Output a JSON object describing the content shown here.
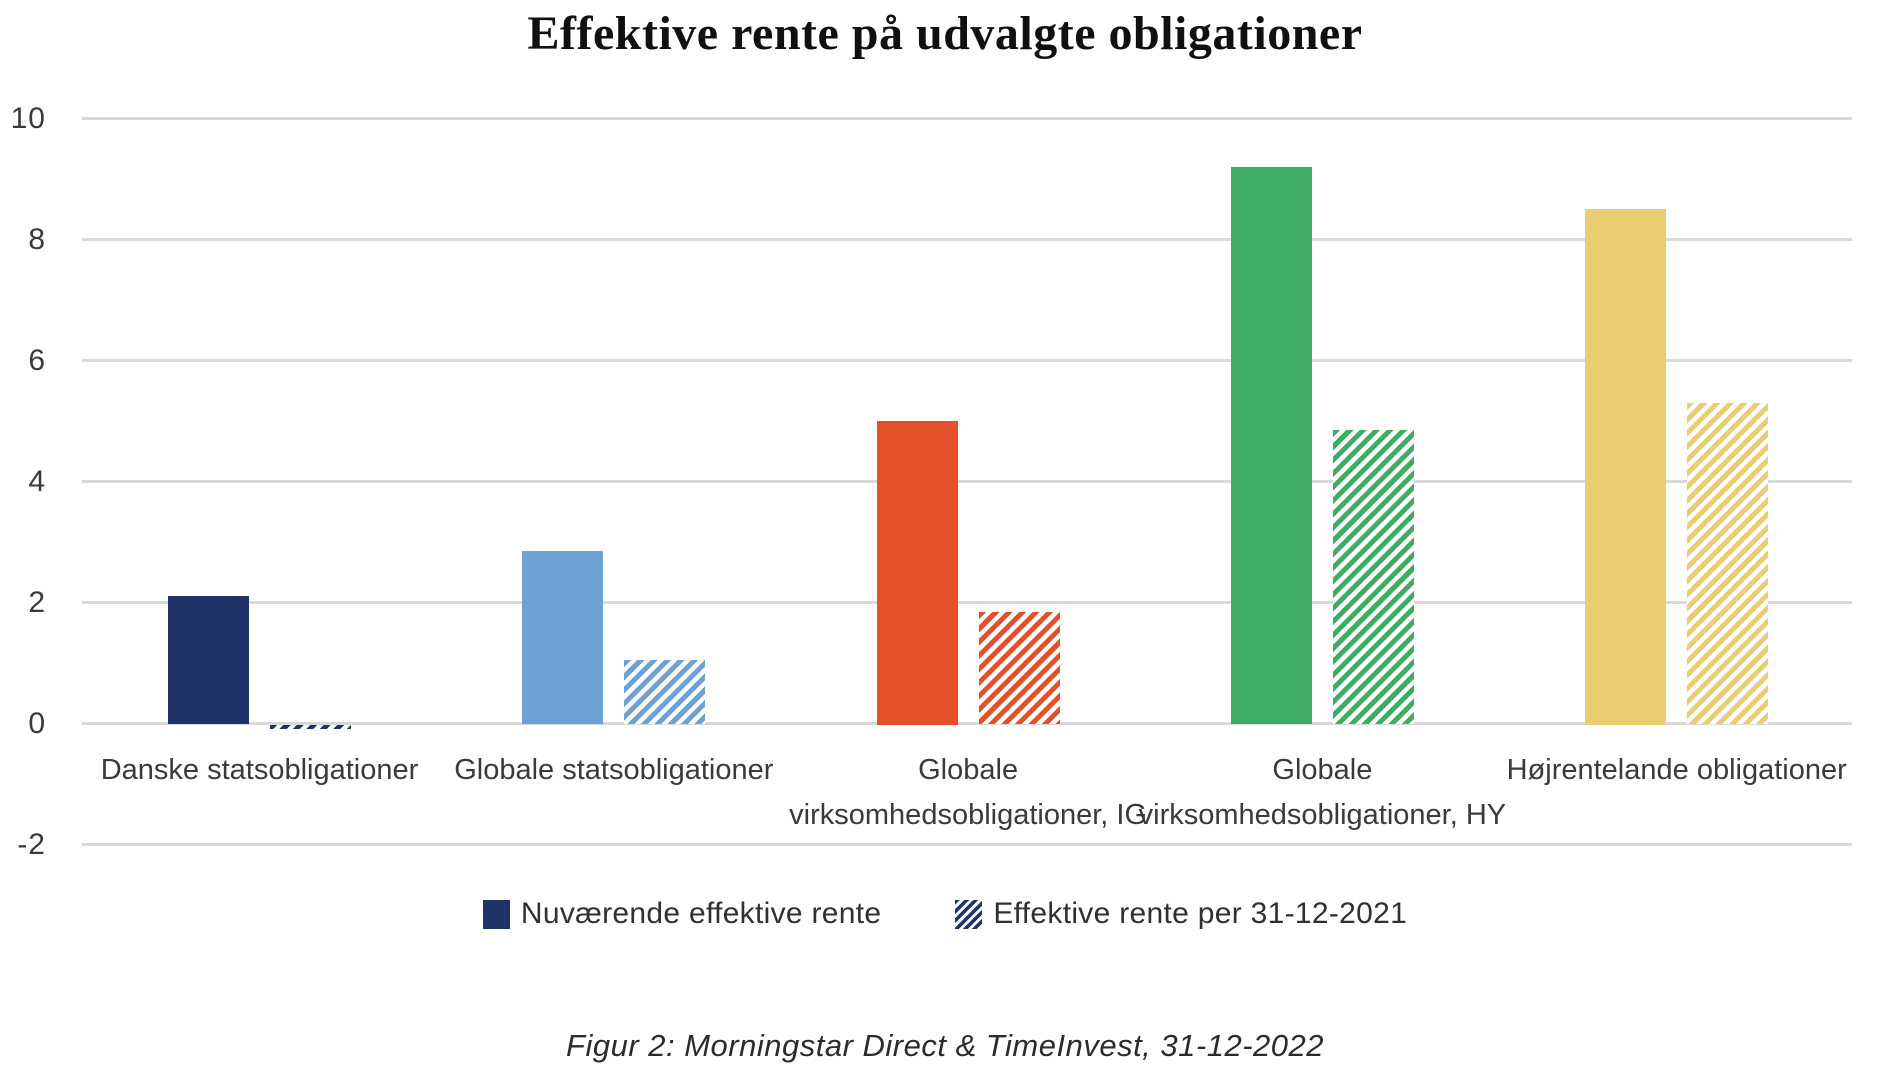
{
  "chart_data": {
    "type": "bar",
    "title": "Effektive rente på udvalgte obligationer",
    "categories": [
      "Danske statsobligationer",
      "Globale statsobligationer",
      "Globale virksomhedsobligationer, IG",
      "Globale virksomhedsobligationer, HY",
      "Højrentelande obligationer"
    ],
    "category_lines": [
      [
        "Danske statsobligationer"
      ],
      [
        "Globale statsobligationer"
      ],
      [
        "Globale",
        "virksomhedsobligationer, IG"
      ],
      [
        "Globale",
        "virksomhedsobligationer, HY"
      ],
      [
        "Højrentelande obligationer"
      ]
    ],
    "series": [
      {
        "name": "Nuværende effektive rente",
        "pattern": "solid",
        "values": [
          2.1,
          2.85,
          5.0,
          9.2,
          8.5
        ]
      },
      {
        "name": "Effektive rente per 31-12-2021",
        "pattern": "diagonal-hatch",
        "values": [
          -0.08,
          1.05,
          1.85,
          4.85,
          5.3
        ]
      }
    ],
    "category_colors": [
      "#1F3368",
      "#6DA1D5",
      "#E4502A",
      "#3EAD63",
      "#ECCC73"
    ],
    "gridline_color": "#D9D9D9",
    "text_color": "#3A3A3A",
    "ylim": [
      -2,
      10
    ],
    "yticks": [
      10,
      8,
      6,
      4,
      2,
      0,
      -2
    ],
    "grid": true,
    "legend_position": "bottom-center"
  },
  "caption": {
    "text": "Figur 2: Morningstar Direct & TimeInvest, 31-12-2022"
  }
}
